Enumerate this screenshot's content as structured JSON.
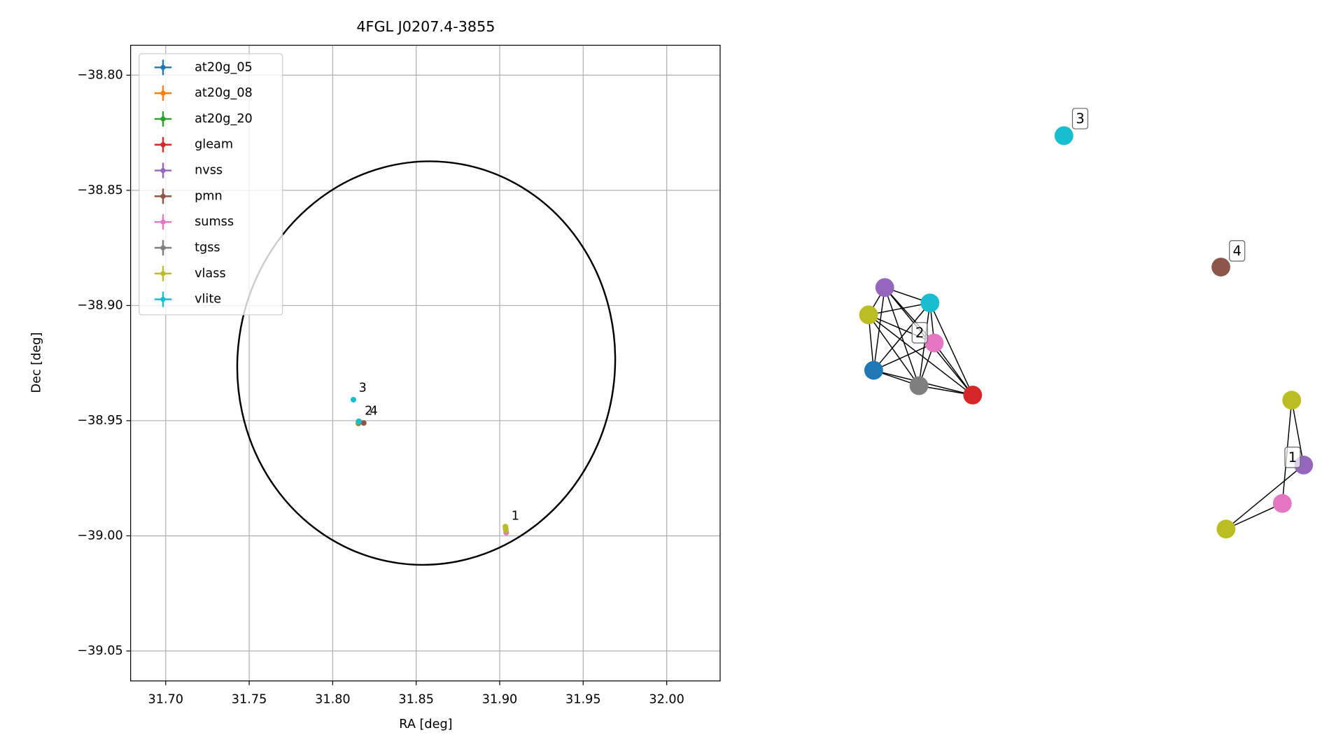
{
  "chart_data": {
    "type": "scatter",
    "title": "4FGL J0207.4-3855",
    "x_label": "RA [deg]",
    "y_label": "Dec [deg]",
    "xlim": [
      31.679,
      32.032
    ],
    "ylim": [
      -39.063,
      -38.787
    ],
    "xticks": [
      {
        "value": 31.7,
        "label": "31.70"
      },
      {
        "value": 31.75,
        "label": "31.75"
      },
      {
        "value": 31.8,
        "label": "31.80"
      },
      {
        "value": 31.85,
        "label": "31.85"
      },
      {
        "value": 31.9,
        "label": "31.90"
      },
      {
        "value": 31.95,
        "label": "31.95"
      },
      {
        "value": 32.0,
        "label": "32.00"
      }
    ],
    "yticks": [
      {
        "value": -38.8,
        "label": "−38.80"
      },
      {
        "value": -38.85,
        "label": "−38.85"
      },
      {
        "value": -38.9,
        "label": "−38.90"
      },
      {
        "value": -38.95,
        "label": "−38.95"
      },
      {
        "value": -39.0,
        "label": "−39.00"
      },
      {
        "value": -39.05,
        "label": "−39.05"
      }
    ],
    "grid": true,
    "legend": "upper left",
    "ellipse": {
      "ra": 31.856,
      "dec": -38.925,
      "a": 0.113,
      "b": 0.0877,
      "angle": 8,
      "color": "#000000"
    },
    "series": [
      {
        "name": "at20g_05",
        "color": "#1f77b4",
        "ra": [
          31.8155
        ],
        "dec": [
          -38.9505
        ]
      },
      {
        "name": "at20g_08",
        "color": "#ff7f0e",
        "ra": [
          31.8154
        ],
        "dec": [
          -38.9512
        ]
      },
      {
        "name": "at20g_20",
        "color": "#2ca02c",
        "ra": [
          31.8155
        ],
        "dec": [
          -38.951
        ]
      },
      {
        "name": "gleam",
        "color": "#d62728",
        "ra": [
          31.8157
        ],
        "dec": [
          -38.9503
        ]
      },
      {
        "name": "nvss",
        "color": "#9467bd",
        "ra": [
          31.8158,
          31.9036
        ],
        "dec": [
          -38.9504,
          -38.997
        ]
      },
      {
        "name": "pmn",
        "color": "#8c564b",
        "ra": [
          31.8186
        ],
        "dec": [
          -38.951
        ]
      },
      {
        "name": "sumss",
        "color": "#e377c2",
        "ra": [
          31.8156,
          31.9039
        ],
        "dec": [
          -38.9507,
          -38.9986
        ]
      },
      {
        "name": "tgss",
        "color": "#7f7f7f",
        "ra": [
          31.8157
        ],
        "dec": [
          -38.9506
        ]
      },
      {
        "name": "vlass",
        "color": "#bcbd22",
        "ra": [
          31.8154,
          31.9034,
          31.9037
        ],
        "dec": [
          -38.9504,
          -38.996,
          -38.9975
        ]
      },
      {
        "name": "vlite",
        "color": "#17becf",
        "ra": [
          31.8124,
          31.8156
        ],
        "dec": [
          -38.9409,
          -38.9503
        ]
      }
    ],
    "annotations": [
      "3",
      "2",
      "4",
      "1"
    ]
  },
  "graph": {
    "nodes": [
      {
        "color": "#9467bd"
      },
      {
        "color": "#17becf"
      },
      {
        "color": "#bcbd22"
      },
      {
        "color": "#e377c2"
      },
      {
        "color": "#1f77b4"
      },
      {
        "color": "#7f7f7f"
      },
      {
        "color": "#d62728"
      },
      {
        "color": "#17becf"
      },
      {
        "color": "#8c564b"
      },
      {
        "color": "#bcbd22"
      },
      {
        "color": "#9467bd"
      },
      {
        "color": "#e377c2"
      },
      {
        "color": "#bcbd22"
      }
    ],
    "edges": [
      [
        0,
        1
      ],
      [
        0,
        2
      ],
      [
        0,
        3
      ],
      [
        0,
        4
      ],
      [
        0,
        5
      ],
      [
        0,
        6
      ],
      [
        1,
        2
      ],
      [
        1,
        3
      ],
      [
        1,
        4
      ],
      [
        1,
        5
      ],
      [
        1,
        6
      ],
      [
        2,
        3
      ],
      [
        2,
        4
      ],
      [
        2,
        5
      ],
      [
        2,
        6
      ],
      [
        3,
        4
      ],
      [
        3,
        5
      ],
      [
        3,
        6
      ],
      [
        4,
        5
      ],
      [
        4,
        6
      ],
      [
        5,
        6
      ],
      [
        9,
        10
      ],
      [
        9,
        11
      ],
      [
        10,
        12
      ],
      [
        11,
        12
      ]
    ],
    "labels": [
      "2",
      "3",
      "4",
      "1"
    ]
  }
}
